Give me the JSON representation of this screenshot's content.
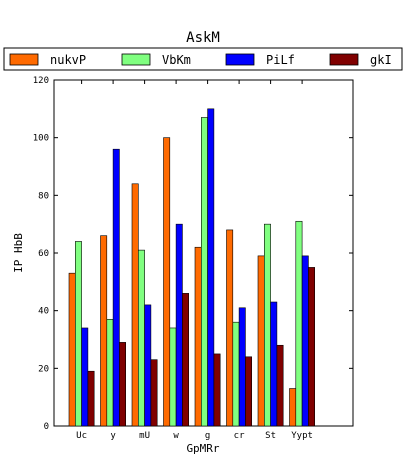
{
  "chart_data": {
    "type": "bar",
    "title": "AskM",
    "xlabel": "GpMRr",
    "ylabel": "IP HbB",
    "ylim": [
      0,
      120
    ],
    "yticks": [
      0,
      20,
      40,
      60,
      80,
      100,
      120
    ],
    "categories": [
      "Uc",
      "y",
      "mU",
      "w",
      "g",
      "cr",
      "St",
      "Yypt"
    ],
    "legend_position": "top",
    "series": [
      {
        "name": "nukvP",
        "color": "#ff6a00",
        "values": [
          53,
          66,
          84,
          100,
          62,
          68,
          59,
          13
        ]
      },
      {
        "name": "VbKm",
        "color": "#80ff80",
        "values": [
          64,
          37,
          61,
          34,
          107,
          36,
          70,
          71
        ]
      },
      {
        "name": "PiLf",
        "color": "#0000ff",
        "values": [
          34,
          96,
          42,
          70,
          110,
          41,
          43,
          59
        ]
      },
      {
        "name": "gkI",
        "color": "#800000",
        "values": [
          19,
          29,
          23,
          46,
          25,
          24,
          28,
          55
        ]
      }
    ]
  }
}
